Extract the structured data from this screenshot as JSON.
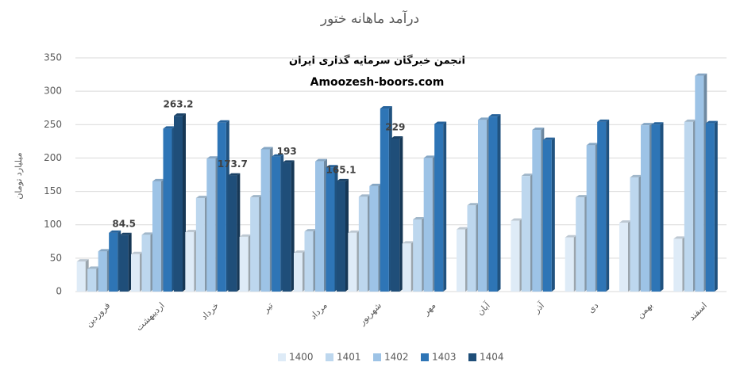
{
  "chart_data": {
    "type": "bar3d",
    "title": "درآمد ماهانه ختور",
    "annotations": [
      "انجمن خبرگان سرمایه گذاری ایران",
      "Amoozesh-boors.com"
    ],
    "y_label": "میلیارد تومان",
    "categories": [
      "فروردین",
      "اردیبهشت",
      "خرداد",
      "تیر",
      "مرداد",
      "شهریور",
      "مهر",
      "آبان",
      "آذر",
      "دی",
      "بهمن",
      "اسفند"
    ],
    "series": [
      {
        "name": "1400",
        "color": "#deebf7",
        "values": [
          45,
          56,
          89,
          82,
          58,
          88,
          72,
          93,
          106,
          81,
          103,
          79
        ]
      },
      {
        "name": "1401",
        "color": "#bdd7ee",
        "values": [
          34,
          85,
          140,
          141,
          90,
          142,
          108,
          129,
          173,
          141,
          171,
          254
        ]
      },
      {
        "name": "1402",
        "color": "#9dc3e6",
        "values": [
          60,
          165,
          199,
          213,
          195,
          158,
          200,
          257,
          242,
          219,
          249,
          323
        ]
      },
      {
        "name": "1403",
        "color": "#2e75b6",
        "values": [
          88,
          244,
          253,
          202,
          186,
          274,
          251,
          262,
          227,
          254,
          250,
          252
        ]
      },
      {
        "name": "1404",
        "color": "#1f4e79",
        "values": [
          84.5,
          263.2,
          173.7,
          193,
          165.1,
          229,
          null,
          null,
          null,
          null,
          null,
          null
        ]
      }
    ],
    "labeled_series": 4,
    "ylim": [
      0,
      350
    ],
    "yticks": [
      0,
      50,
      100,
      150,
      200,
      250,
      300,
      350
    ],
    "grid": true,
    "legend": "bottom"
  }
}
